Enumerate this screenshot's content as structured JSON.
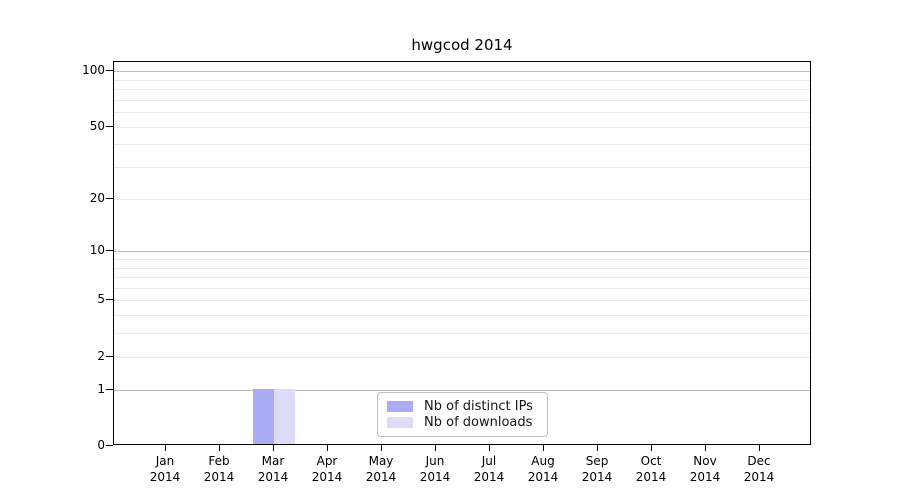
{
  "chart_data": {
    "type": "bar",
    "title": "hwgcod 2014",
    "x_ticks": [
      {
        "month": "Jan",
        "year": "2014"
      },
      {
        "month": "Feb",
        "year": "2014"
      },
      {
        "month": "Mar",
        "year": "2014"
      },
      {
        "month": "Apr",
        "year": "2014"
      },
      {
        "month": "May",
        "year": "2014"
      },
      {
        "month": "Jun",
        "year": "2014"
      },
      {
        "month": "Jul",
        "year": "2014"
      },
      {
        "month": "Aug",
        "year": "2014"
      },
      {
        "month": "Sep",
        "year": "2014"
      },
      {
        "month": "Oct",
        "year": "2014"
      },
      {
        "month": "Nov",
        "year": "2014"
      },
      {
        "month": "Dec",
        "year": "2014"
      }
    ],
    "y_ticks": [
      0,
      1,
      2,
      5,
      10,
      20,
      50,
      100
    ],
    "y_scale": "log1p",
    "ylim": [
      0,
      115
    ],
    "grid": true,
    "legend_position": "lower center",
    "series": [
      {
        "name": "Nb of distinct IPs",
        "color": "#ababf6",
        "values": [
          0,
          0,
          1,
          0,
          0,
          0,
          0,
          0,
          0,
          0,
          0,
          0
        ]
      },
      {
        "name": "Nb of downloads",
        "color": "#dcdcf8",
        "values": [
          0,
          0,
          1,
          0,
          0,
          0,
          0,
          0,
          0,
          0,
          0,
          0
        ]
      }
    ]
  }
}
